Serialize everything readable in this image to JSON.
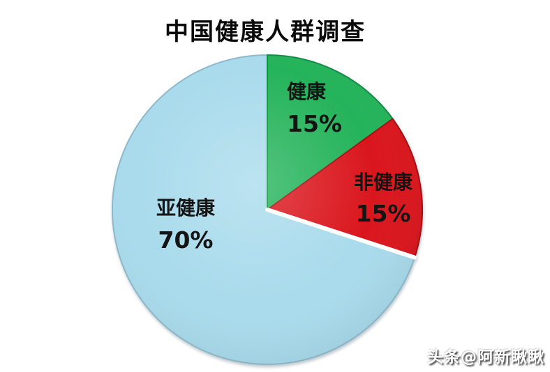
{
  "title": "中国健康人群调查",
  "watermark": "头条@阿新瞅瞅",
  "chart_data": {
    "type": "pie",
    "title": "中国健康人群调查",
    "direction": "clockwise",
    "start_angle_deg": 0,
    "legend_position": "none",
    "labels_on_slices": true,
    "slices": [
      {
        "label": "健康",
        "value": 15,
        "value_text": "15%",
        "color": "#24b35a",
        "edge_color": "#138c45"
      },
      {
        "label": "非健康",
        "value": 15,
        "value_text": "15%",
        "color": "#da161d",
        "edge_color": "#a50f14"
      },
      {
        "label": "亚健康",
        "value": 70,
        "value_text": "70%",
        "color": "#a9dbec",
        "edge_color": "#8db9cb"
      }
    ],
    "separator": {
      "after_slice_index": 1,
      "color": "#ffffff"
    },
    "background": "#ffffff",
    "label_text_color": "#141414"
  }
}
